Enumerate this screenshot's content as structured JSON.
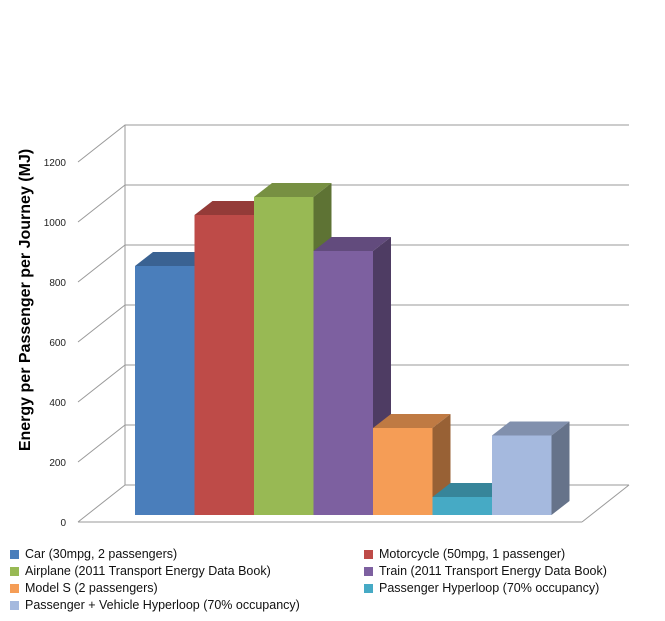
{
  "chart_data": {
    "type": "bar",
    "style": "3d-column",
    "title": "",
    "xlabel": "",
    "ylabel": "Energy per Passenger per Journey (MJ)",
    "ylim": [
      0,
      1200
    ],
    "yticks": [
      0,
      200,
      400,
      600,
      800,
      1000,
      1200
    ],
    "grid": true,
    "legend_position": "bottom",
    "series": [
      {
        "name": "Car  (30mpg, 2 passengers)",
        "value": 830,
        "color": "#4a7ebb"
      },
      {
        "name": "Motorcycle  (50mpg, 1 passenger)",
        "value": 1000,
        "color": "#be4b48"
      },
      {
        "name": "Airplane  (2011 Transport Energy Data Book)",
        "value": 1060,
        "color": "#98b954"
      },
      {
        "name": "Train  (2011 Transport Energy Data Book)",
        "value": 880,
        "color": "#7d60a0"
      },
      {
        "name": "Model S  (2 passengers)",
        "value": 290,
        "color": "#f59d56"
      },
      {
        "name": "Passenger Hyperloop  (70% occupancy)",
        "value": 60,
        "color": "#46aac5"
      },
      {
        "name": "Passenger + Vehicle Hyperloop  (70% occupancy)",
        "value": 265,
        "color": "#a5b9de"
      }
    ]
  }
}
